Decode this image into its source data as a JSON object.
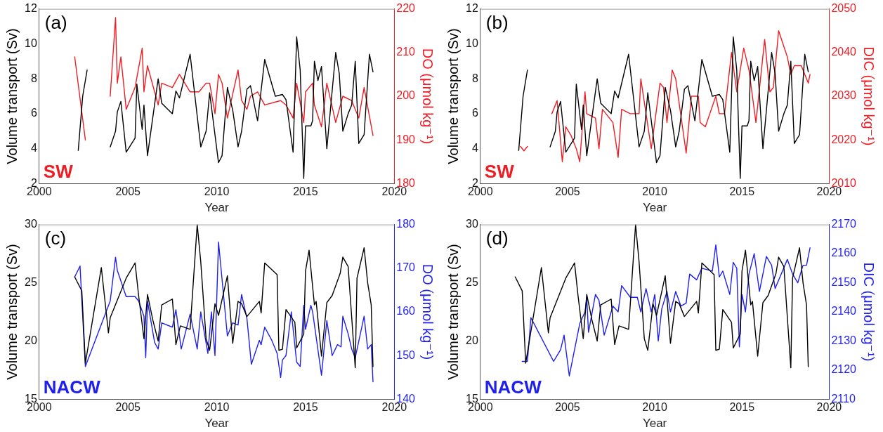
{
  "chart_data": [
    {
      "type": "line",
      "xlabel": "Year",
      "ylabel": "Volume transport (Sv)",
      "y2label": "DO (μmol kg⁻¹)",
      "xlim": [
        2000,
        2020
      ],
      "xticks": [
        2000,
        2005,
        2010,
        2015,
        2020
      ],
      "ylim": [
        2,
        12
      ],
      "yticks": [
        2,
        4,
        6,
        8,
        10,
        12
      ],
      "y2lim": [
        180,
        220
      ],
      "y2ticks": [
        180,
        190,
        200,
        210,
        220
      ],
      "legend": false,
      "annotations": [
        "(a)",
        "SW"
      ],
      "series": [
        {
          "color": "#000000",
          "x": [
            2002.2,
            2002.45,
            2002.7,
            2003.3,
            2004.0,
            2004.3,
            2004.4,
            2004.6,
            2004.9,
            2005.4,
            2005.5,
            2005.8,
            2005.9,
            2006.1,
            2006.7,
            2006.9,
            2007.5,
            2007.7,
            2007.9,
            2008.5,
            2009.1,
            2009.4,
            2009.6,
            2010.1,
            2010.3,
            2010.6,
            2010.9,
            2011.2,
            2011.4,
            2011.7,
            2011.9,
            2012.3,
            2012.7,
            2013.3,
            2013.7,
            2013.9,
            2014.3,
            2014.5,
            2014.7,
            2014.9,
            2015.0,
            2015.3,
            2015.4,
            2015.5,
            2015.7,
            2015.9,
            2016.2,
            2016.7,
            2016.9,
            2017.1,
            2017.4,
            2017.6,
            2017.8,
            2018.0,
            2018.3,
            2018.6,
            2018.8
          ],
          "values": [
            3.9,
            7.0,
            8.5,
            null,
            4.1,
            5.0,
            6.1,
            6.7,
            3.8,
            4.6,
            7.7,
            5.1,
            6.5,
            3.6,
            8.0,
            6.6,
            6.0,
            7.3,
            6.9,
            9.4,
            4.1,
            5.0,
            7.2,
            3.2,
            3.6,
            7.5,
            6.2,
            4.1,
            5.0,
            7.4,
            7.6,
            5.6,
            9.1,
            7.0,
            7.1,
            6.8,
            3.8,
            10.4,
            8.5,
            2.3,
            5.3,
            5.3,
            5.6,
            9.0,
            7.9,
            8.7,
            4.0,
            9.5,
            8.3,
            5.0,
            6.0,
            6.5,
            9.0,
            4.3,
            4.8,
            9.4,
            8.4
          ]
        },
        {
          "color": "#ee1d23",
          "axis": "y2",
          "x": [
            2002.0,
            2002.6,
            2003.3,
            2004.0,
            2004.3,
            2004.4,
            2004.6,
            2004.9,
            2005.4,
            2005.8,
            2005.9,
            2006.1,
            2006.7,
            2006.9,
            2007.5,
            2007.9,
            2008.5,
            2009.0,
            2009.4,
            2009.6,
            2009.9,
            2010.1,
            2010.3,
            2010.6,
            2011.2,
            2011.4,
            2011.7,
            2011.9,
            2012.3,
            2012.7,
            2013.6,
            2013.9,
            2014.3,
            2014.5,
            2014.9,
            2015.0,
            2015.4,
            2015.5,
            2015.9,
            2016.2,
            2016.7,
            2017.1,
            2017.6,
            2018.0,
            2018.3,
            2018.8
          ],
          "values": [
            209,
            190,
            null,
            200,
            218,
            203,
            209,
            197,
            202,
            211,
            201,
            207,
            198,
            203,
            202,
            205,
            201,
            201,
            203,
            203,
            196,
            205,
            203,
            195,
            206,
            199,
            197,
            200,
            201,
            198,
            199,
            198,
            195,
            203,
            194,
            201,
            203,
            198,
            193,
            203,
            194,
            200,
            199,
            195,
            202,
            191
          ]
        }
      ]
    },
    {
      "type": "line",
      "xlabel": "Year",
      "ylabel": "Volume transport (Sv)",
      "y2label": "DIC (μmol kg⁻¹)",
      "xlim": [
        2000,
        2020
      ],
      "xticks": [
        2000,
        2005,
        2010,
        2015,
        2020
      ],
      "ylim": [
        2,
        12
      ],
      "yticks": [
        2,
        4,
        6,
        8,
        10,
        12
      ],
      "y2lim": [
        2010,
        2050
      ],
      "y2ticks": [
        2010,
        2020,
        2030,
        2040,
        2050
      ],
      "legend": false,
      "annotations": [
        "(b)",
        "SW"
      ],
      "series": [
        {
          "color": "#000000",
          "x": [
            2002.2,
            2002.45,
            2002.7,
            2003.3,
            2004.0,
            2004.3,
            2004.4,
            2004.6,
            2004.9,
            2005.4,
            2005.5,
            2005.8,
            2005.9,
            2006.1,
            2006.7,
            2006.9,
            2007.5,
            2007.7,
            2007.9,
            2008.5,
            2009.1,
            2009.4,
            2009.6,
            2010.1,
            2010.3,
            2010.6,
            2010.9,
            2011.2,
            2011.4,
            2011.7,
            2011.9,
            2012.3,
            2012.7,
            2013.3,
            2013.7,
            2013.9,
            2014.3,
            2014.5,
            2014.7,
            2014.9,
            2015.0,
            2015.3,
            2015.4,
            2015.5,
            2015.7,
            2015.9,
            2016.2,
            2016.7,
            2016.9,
            2017.1,
            2017.4,
            2017.6,
            2017.8,
            2018.0,
            2018.3,
            2018.6,
            2018.8
          ],
          "values": [
            3.9,
            7.0,
            8.5,
            null,
            4.1,
            5.0,
            6.1,
            6.7,
            3.8,
            4.6,
            7.7,
            5.1,
            6.5,
            3.6,
            8.0,
            6.6,
            6.0,
            7.3,
            6.9,
            9.4,
            4.1,
            5.0,
            7.2,
            3.2,
            3.6,
            7.5,
            6.2,
            4.1,
            5.0,
            7.4,
            7.6,
            5.6,
            9.1,
            7.0,
            7.1,
            6.8,
            3.8,
            10.4,
            8.5,
            2.3,
            5.3,
            5.3,
            5.6,
            9.0,
            7.9,
            8.7,
            4.0,
            9.5,
            8.3,
            5.0,
            6.0,
            6.5,
            9.0,
            4.3,
            4.8,
            9.4,
            8.4
          ]
        },
        {
          "color": "#ee1d23",
          "axis": "y2",
          "x": [
            2002.3,
            2002.5,
            2002.7,
            2003.4,
            2004.1,
            2004.4,
            2004.7,
            2004.9,
            2005.2,
            2005.5,
            2005.7,
            2006.0,
            2006.1,
            2006.6,
            2006.8,
            2007.0,
            2007.6,
            2007.9,
            2008.1,
            2008.6,
            2009.1,
            2009.2,
            2009.8,
            2010.3,
            2010.5,
            2010.7,
            2011.0,
            2011.2,
            2011.8,
            2012.1,
            2012.5,
            2012.6,
            2012.9,
            2013.5,
            2013.7,
            2014.0,
            2014.4,
            2014.7,
            2015.1,
            2015.4,
            2015.8,
            2016.3,
            2016.6,
            2016.8,
            2017.1,
            2017.6,
            2017.8,
            2018.0,
            2018.4,
            2018.8,
            2018.9
          ],
          "values": [
            2018.5,
            2017.5,
            2018.5,
            null,
            2026,
            2029,
            2015,
            2023,
            2021,
            2018,
            2015,
            2031,
            2026,
            2025,
            2018,
            2027,
            2024,
            2016,
            2027,
            2026,
            2026,
            2034,
            2018,
            2033,
            2032,
            2024,
            2036,
            2034,
            2017,
            2030,
            2030,
            2024,
            2023,
            2030,
            2026,
            2026,
            2040,
            2031,
            2041,
            2036,
            2024,
            2043,
            2031,
            2032,
            2045,
            2039,
            2035,
            2037,
            2037,
            2033,
            2035
          ]
        }
      ]
    },
    {
      "type": "line",
      "xlabel": "Year",
      "ylabel": "Volume transport (Sv)",
      "y2label": "DO (μmol kg⁻¹)",
      "xlim": [
        2000,
        2020
      ],
      "xticks": [
        2000,
        2005,
        2010,
        2015,
        2020
      ],
      "ylim": [
        15,
        30
      ],
      "yticks": [
        15,
        20,
        25,
        30
      ],
      "y2lim": [
        140,
        180
      ],
      "y2ticks": [
        140,
        150,
        160,
        170,
        180
      ],
      "legend": false,
      "annotations": [
        "(c)",
        "NACW"
      ],
      "series": [
        {
          "color": "#000000",
          "x": [
            2002.0,
            2002.4,
            2002.6,
            2003.5,
            2003.9,
            2004.0,
            2004.9,
            2005.4,
            2005.6,
            2005.9,
            2006.1,
            2006.4,
            2006.7,
            2006.9,
            2007.5,
            2007.7,
            2007.95,
            2008.5,
            2008.9,
            2009.1,
            2009.4,
            2009.6,
            2009.9,
            2010.1,
            2010.6,
            2010.9,
            2011.2,
            2011.4,
            2011.7,
            2012.4,
            2012.5,
            2012.7,
            2013.4,
            2013.5,
            2013.7,
            2013.9,
            2014.4,
            2014.5,
            2014.9,
            2015.0,
            2015.2,
            2015.5,
            2015.6,
            2015.9,
            2016.2,
            2016.5,
            2016.95,
            2017.1,
            2017.4,
            2017.8,
            2017.9,
            2018.3,
            2018.5,
            2018.7,
            2018.8
          ],
          "values": [
            25.5,
            24.3,
            18.1,
            26.3,
            20.7,
            22.0,
            25.4,
            26.7,
            23.9,
            20.2,
            24.0,
            21.8,
            20.0,
            23.1,
            23.6,
            19.7,
            21.3,
            21.0,
            30.0,
            26.8,
            20.2,
            19.2,
            23.2,
            22.2,
            25.6,
            19.8,
            23.4,
            23.2,
            22.1,
            23.4,
            22.4,
            26.7,
            25.7,
            19.2,
            19.3,
            22.7,
            21.6,
            19.4,
            20.6,
            26.0,
            27.8,
            23.1,
            23.4,
            18.7,
            23.3,
            23.9,
            25.8,
            27.2,
            26.4,
            17.7,
            25.4,
            28.0,
            25.0,
            23.1,
            17.8
          ]
        },
        {
          "color": "#1f1fee",
          "axis": "y2",
          "x": [
            2002.0,
            2002.3,
            2002.6,
            2004.0,
            2004.3,
            2004.4,
            2004.9,
            2005.4,
            2005.6,
            2005.9,
            2006.0,
            2006.1,
            2006.5,
            2006.7,
            2006.9,
            2007.5,
            2007.7,
            2008.0,
            2008.5,
            2008.9,
            2009.1,
            2009.5,
            2009.7,
            2009.9,
            2010.1,
            2010.6,
            2010.9,
            2011.2,
            2011.4,
            2011.7,
            2011.95,
            2012.4,
            2012.5,
            2012.7,
            2013.1,
            2013.4,
            2013.6,
            2013.7,
            2013.9,
            2014.2,
            2014.5,
            2014.7,
            2014.9,
            2015.0,
            2015.3,
            2015.4,
            2015.9,
            2016.2,
            2016.5,
            2016.8,
            2017.0,
            2017.1,
            2017.4,
            2017.6,
            2017.8,
            2018.3,
            2018.5,
            2018.7,
            2018.8
          ],
          "values": [
            168,
            170.5,
            147.5,
            162.5,
            172.5,
            169.5,
            163.5,
            163.5,
            162.5,
            159,
            149.5,
            162.5,
            153,
            151.5,
            157.5,
            156.5,
            160.5,
            151.5,
            159.5,
            151.5,
            160,
            150.5,
            160,
            150,
            176,
            154.5,
            157.5,
            157,
            164,
            158.5,
            148,
            153.5,
            152.5,
            156.5,
            153.5,
            150.5,
            145,
            149,
            150,
            160,
            148.5,
            147.5,
            161.5,
            156,
            161.5,
            160,
            145.5,
            158,
            150,
            152.5,
            152,
            159,
            155,
            151.5,
            149.5,
            159,
            151.5,
            152.5,
            144
          ]
        }
      ]
    },
    {
      "type": "line",
      "xlabel": "Year",
      "ylabel": "Volume transport (Sv)",
      "y2label": "DIC (μmol kg⁻¹)",
      "xlim": [
        2000,
        2020
      ],
      "xticks": [
        2000,
        2005,
        2010,
        2015,
        2020
      ],
      "ylim": [
        15,
        30
      ],
      "yticks": [
        15,
        20,
        25,
        30
      ],
      "y2lim": [
        2110,
        2170
      ],
      "y2ticks": [
        2110,
        2120,
        2130,
        2140,
        2150,
        2160,
        2170
      ],
      "legend": false,
      "annotations": [
        "(d)",
        "NACW"
      ],
      "series": [
        {
          "color": "#000000",
          "x": [
            2002.0,
            2002.4,
            2002.6,
            2003.5,
            2003.9,
            2004.0,
            2004.9,
            2005.4,
            2005.6,
            2005.9,
            2006.1,
            2006.4,
            2006.7,
            2006.9,
            2007.5,
            2007.7,
            2007.95,
            2008.5,
            2008.9,
            2009.1,
            2009.4,
            2009.6,
            2009.9,
            2010.1,
            2010.6,
            2010.9,
            2011.2,
            2011.4,
            2011.7,
            2012.4,
            2012.5,
            2012.7,
            2013.4,
            2013.5,
            2013.7,
            2013.9,
            2014.4,
            2014.5,
            2014.9,
            2015.0,
            2015.2,
            2015.5,
            2015.6,
            2015.9,
            2016.2,
            2016.5,
            2016.95,
            2017.1,
            2017.4,
            2017.8,
            2017.9,
            2018.3,
            2018.5,
            2018.7,
            2018.8
          ],
          "values": [
            25.5,
            24.3,
            18.1,
            26.3,
            20.7,
            22.0,
            25.4,
            26.7,
            23.9,
            20.2,
            24.0,
            21.8,
            20.0,
            23.1,
            23.6,
            19.7,
            21.3,
            21.0,
            30.0,
            26.8,
            20.2,
            19.2,
            23.2,
            22.2,
            25.6,
            19.8,
            23.4,
            23.2,
            22.1,
            23.4,
            22.4,
            26.7,
            25.7,
            19.2,
            19.3,
            22.7,
            21.6,
            19.4,
            20.6,
            26.0,
            27.8,
            23.1,
            23.4,
            18.7,
            23.3,
            23.9,
            25.8,
            27.2,
            26.4,
            17.7,
            25.4,
            28.0,
            25.0,
            23.1,
            17.8
          ]
        },
        {
          "color": "#1f1fee",
          "axis": "y2",
          "x": [
            2002.4,
            2002.7,
            2002.9,
            2004.2,
            2004.6,
            2004.8,
            2005.1,
            2005.7,
            2006.0,
            2006.1,
            2006.2,
            2006.6,
            2006.8,
            2007.1,
            2007.6,
            2007.9,
            2008.1,
            2008.6,
            2009.0,
            2009.2,
            2009.5,
            2009.8,
            2010.0,
            2010.2,
            2010.4,
            2010.7,
            2010.9,
            2011.2,
            2011.5,
            2011.8,
            2012.0,
            2012.4,
            2012.7,
            2013.3,
            2013.5,
            2013.7,
            2013.9,
            2014.3,
            2014.5,
            2014.7,
            2014.85,
            2015.0,
            2015.2,
            2015.4,
            2015.7,
            2016.0,
            2016.4,
            2016.7,
            2016.9,
            2017.6,
            2017.9,
            2018.2,
            2018.5,
            2018.7,
            2018.9
          ],
          "values": [
            2123,
            2123,
            2138,
            2123,
            2127,
            2132,
            2118,
            2136,
            2140,
            2145,
            2133,
            2146,
            2144,
            2132,
            2142,
            2140,
            2149,
            2145,
            2145,
            2140,
            2148,
            2140,
            2146,
            2130,
            2141,
            2147,
            2140,
            2147,
            2142,
            2143,
            2153,
            2151,
            2155,
            2154,
            2163,
            2152,
            2154,
            2146,
            2157,
            2155,
            2128,
            2146,
            2140,
            2153,
            2160,
            2147,
            2159,
            2156,
            2148,
            2158,
            2153,
            2150,
            2156,
            2156,
            2162
          ]
        }
      ]
    }
  ]
}
